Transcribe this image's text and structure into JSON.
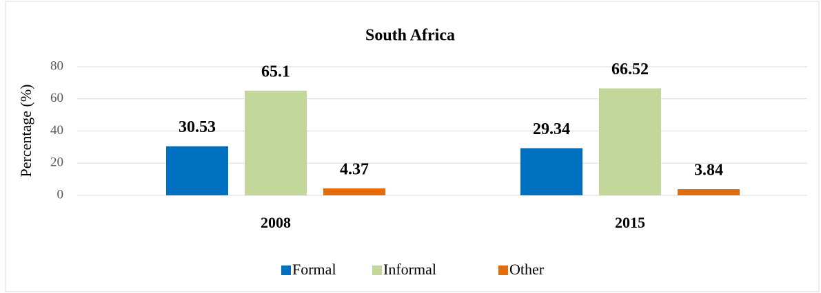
{
  "chart_data": {
    "type": "bar",
    "title": "South Africa",
    "y_label": "Percentage (%)",
    "categories": [
      "2008",
      "2015"
    ],
    "series": [
      {
        "name": "Formal",
        "color": "#0070c0",
        "values": [
          30.53,
          29.34
        ]
      },
      {
        "name": "Informal",
        "color": "#c4d79b",
        "values": [
          65.1,
          66.52
        ]
      },
      {
        "name": "Other",
        "color": "#e46c0a",
        "values": [
          4.37,
          3.84
        ]
      }
    ],
    "ylim": [
      0,
      80
    ],
    "yticks": [
      0,
      20,
      40,
      60,
      80
    ],
    "grid": true,
    "legend": "bottom"
  }
}
